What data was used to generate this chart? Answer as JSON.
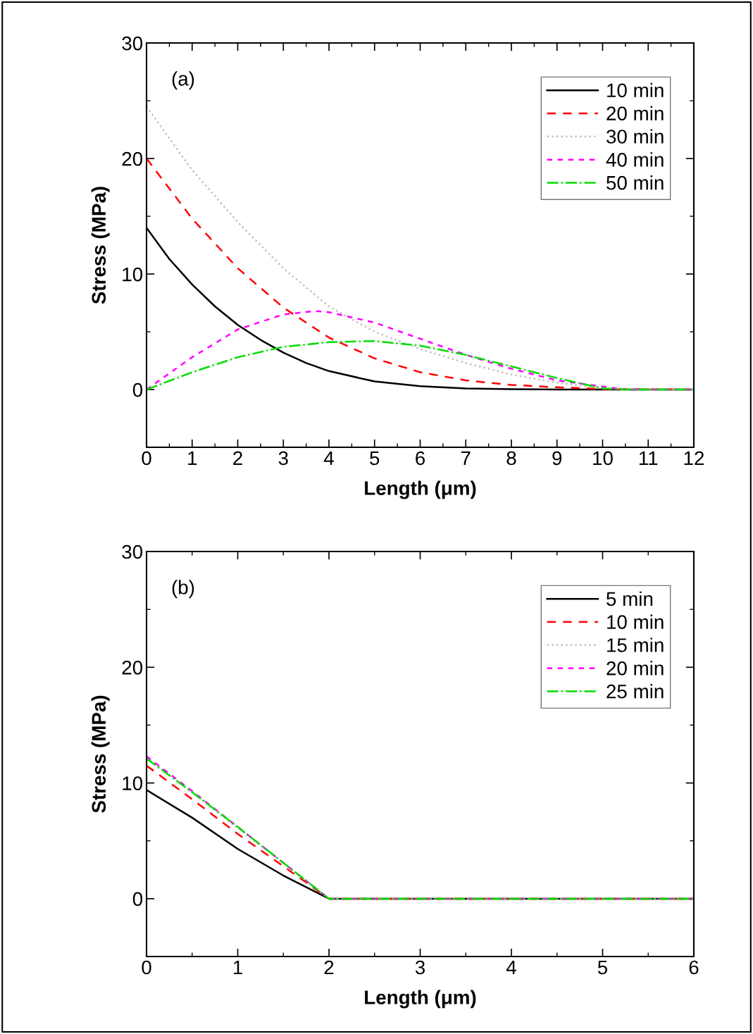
{
  "chart_data": [
    {
      "type": "line",
      "xlabel": "Length (μm)",
      "ylabel": "Stress (MPa)",
      "annotations": [
        "(a)"
      ],
      "xlim": [
        0,
        12
      ],
      "xticks": [
        0,
        1,
        2,
        3,
        4,
        5,
        6,
        7,
        8,
        9,
        10,
        11,
        12
      ],
      "ylim": [
        -5,
        30
      ],
      "yticks": [
        0,
        10,
        20,
        30
      ],
      "grid": false,
      "legend": "top right",
      "marker": "none",
      "series": [
        {
          "name": "10 min",
          "color": "#000000",
          "line_style": "solid",
          "x": [
            0,
            0.5,
            1,
            1.5,
            2,
            2.5,
            3,
            3.5,
            4,
            5,
            6,
            7,
            8,
            9,
            10,
            12
          ],
          "values": [
            14,
            11.3,
            9.1,
            7.2,
            5.6,
            4.3,
            3.2,
            2.3,
            1.6,
            0.7,
            0.3,
            0.1,
            0.03,
            0,
            0,
            0
          ]
        },
        {
          "name": "20 min",
          "color": "#ff0000",
          "line_style": "dashed",
          "x": [
            0,
            1,
            2,
            3,
            4,
            5,
            6,
            7,
            8,
            9,
            10,
            12
          ],
          "values": [
            20,
            14.8,
            10.5,
            7.1,
            4.5,
            2.7,
            1.5,
            0.8,
            0.4,
            0.2,
            0.05,
            0
          ]
        },
        {
          "name": "30 min",
          "color": "#c0c0c0",
          "line_style": "dotted",
          "x": [
            0,
            1,
            2,
            3,
            4,
            5,
            6,
            7,
            8,
            9,
            10,
            12
          ],
          "values": [
            24.5,
            19,
            14.5,
            10.5,
            7.2,
            5,
            3.5,
            2.3,
            1.3,
            0.6,
            0.1,
            0
          ]
        },
        {
          "name": "40 min",
          "color": "#ff00ff",
          "line_style": "dashed",
          "x": [
            0,
            1,
            2,
            3,
            3.7,
            4,
            5,
            6,
            7,
            8,
            9,
            10.5,
            12
          ],
          "values": [
            0,
            2.8,
            5.2,
            6.5,
            6.8,
            6.7,
            5.8,
            4.4,
            3,
            1.8,
            0.8,
            0,
            0
          ]
        },
        {
          "name": "50 min",
          "color": "#00dd00",
          "line_style": "dashdot",
          "x": [
            0,
            1,
            2,
            3,
            4,
            5,
            6,
            7,
            8,
            9,
            10,
            10.5,
            12
          ],
          "values": [
            0,
            1.5,
            2.8,
            3.7,
            4.1,
            4.2,
            3.8,
            3,
            2,
            1,
            0.1,
            0,
            0
          ]
        }
      ]
    },
    {
      "type": "line",
      "xlabel": "Length (μm)",
      "ylabel": "Stress (MPa)",
      "annotations": [
        "(b)"
      ],
      "xlim": [
        0,
        6
      ],
      "xticks": [
        0,
        1,
        2,
        3,
        4,
        5,
        6
      ],
      "ylim": [
        -5,
        30
      ],
      "yticks": [
        0,
        10,
        20,
        30
      ],
      "grid": false,
      "legend": "top right",
      "marker": "none",
      "series": [
        {
          "name": "5 min",
          "color": "#000000",
          "line_style": "solid",
          "x": [
            0,
            0.5,
            1,
            1.5,
            2,
            6
          ],
          "values": [
            9.4,
            7,
            4.3,
            2,
            0,
            0
          ]
        },
        {
          "name": "10 min",
          "color": "#ff0000",
          "line_style": "dashed",
          "x": [
            0,
            0.5,
            1,
            1.5,
            2,
            6
          ],
          "values": [
            11.5,
            8.6,
            5.6,
            2.8,
            0,
            0
          ]
        },
        {
          "name": "15 min",
          "color": "#c0c0c0",
          "line_style": "dotted",
          "x": [
            0,
            0.5,
            1,
            1.5,
            2,
            6
          ],
          "values": [
            12.2,
            9.2,
            6.1,
            3.1,
            0,
            0
          ]
        },
        {
          "name": "20 min",
          "color": "#ff00ff",
          "line_style": "dashed",
          "x": [
            0,
            0.5,
            1,
            1.5,
            2,
            6
          ],
          "values": [
            12.3,
            9.3,
            6.2,
            3.1,
            0,
            0
          ]
        },
        {
          "name": "25 min",
          "color": "#00dd00",
          "line_style": "dashdot",
          "x": [
            0,
            0.5,
            1,
            1.5,
            2,
            6
          ],
          "values": [
            12.1,
            9.2,
            6.2,
            3.1,
            0,
            0
          ]
        }
      ]
    }
  ]
}
